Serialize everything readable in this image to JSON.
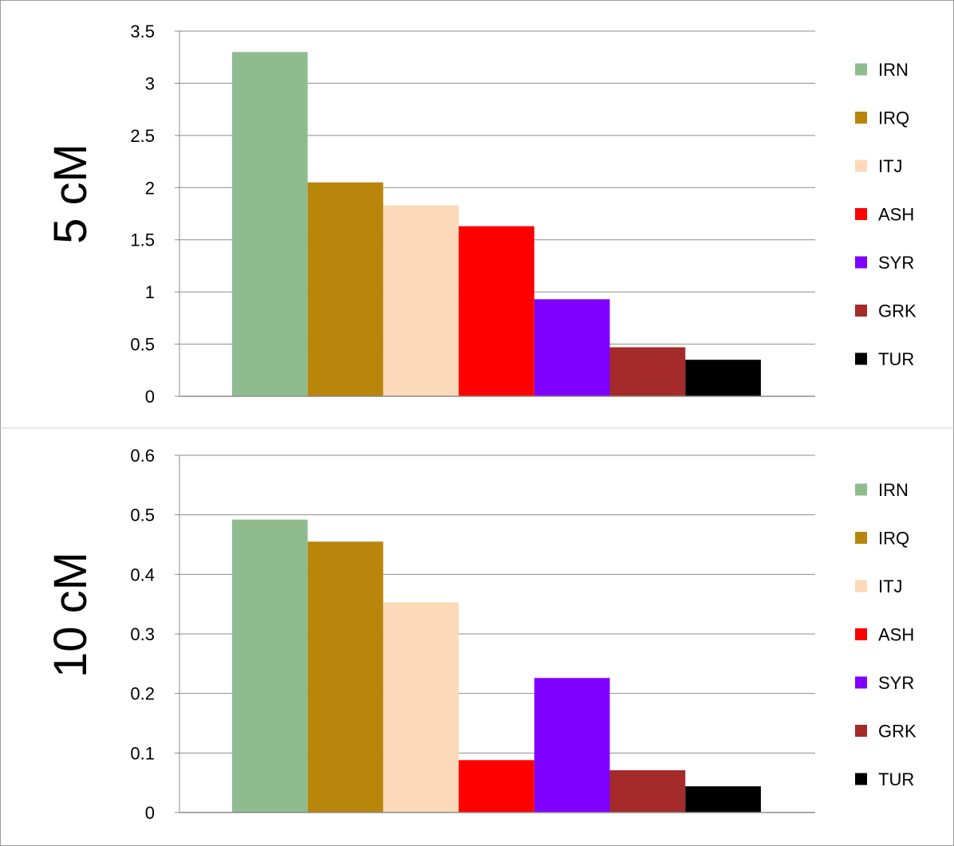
{
  "chart_data": [
    {
      "type": "bar",
      "title": "",
      "side_label": "5 cM",
      "xlabel": "",
      "ylabel": "",
      "ylim": [
        0,
        3.5
      ],
      "yticks": [
        "0",
        "0.5",
        "1",
        "1.5",
        "2",
        "2.5",
        "3",
        "3.5"
      ],
      "grid": "horizontal",
      "legend_position": "right",
      "series": [
        {
          "name": "IRN",
          "value": 3.3,
          "color": "#8fbc8f"
        },
        {
          "name": "IRQ",
          "value": 2.05,
          "color": "#b8860b"
        },
        {
          "name": "ITJ",
          "value": 1.83,
          "color": "#fcd9b8"
        },
        {
          "name": "ASH",
          "value": 1.63,
          "color": "#ff0000"
        },
        {
          "name": "SYR",
          "value": 0.93,
          "color": "#8000ff"
        },
        {
          "name": "GRK",
          "value": 0.47,
          "color": "#a52a2a"
        },
        {
          "name": "TUR",
          "value": 0.35,
          "color": "#000000"
        }
      ]
    },
    {
      "type": "bar",
      "title": "",
      "side_label": "10 cM",
      "xlabel": "",
      "ylabel": "",
      "ylim": [
        0,
        0.6
      ],
      "yticks": [
        "0",
        "0.1",
        "0.2",
        "0.3",
        "0.4",
        "0.5",
        "0.6"
      ],
      "grid": "horizontal",
      "legend_position": "right",
      "series": [
        {
          "name": "IRN",
          "value": 0.492,
          "color": "#8fbc8f"
        },
        {
          "name": "IRQ",
          "value": 0.455,
          "color": "#b8860b"
        },
        {
          "name": "ITJ",
          "value": 0.353,
          "color": "#fcd9b8"
        },
        {
          "name": "ASH",
          "value": 0.088,
          "color": "#ff0000"
        },
        {
          "name": "SYR",
          "value": 0.226,
          "color": "#8000ff"
        },
        {
          "name": "GRK",
          "value": 0.071,
          "color": "#a52a2a"
        },
        {
          "name": "TUR",
          "value": 0.044,
          "color": "#000000"
        }
      ]
    }
  ]
}
